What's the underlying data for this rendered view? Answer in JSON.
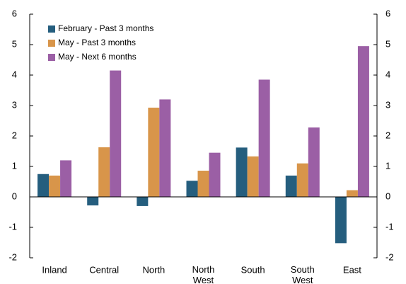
{
  "chart_data": {
    "type": "bar",
    "categories": [
      "Inland",
      "Central",
      "North",
      "North West",
      "South",
      "South West",
      "East"
    ],
    "series": [
      {
        "name": "February - Past 3 months",
        "color": "#255e7e",
        "values": [
          0.75,
          -0.28,
          -0.3,
          0.53,
          1.62,
          0.7,
          -1.52
        ]
      },
      {
        "name": "May - Past 3 months",
        "color": "#d8954a",
        "values": [
          0.7,
          1.63,
          2.93,
          0.86,
          1.33,
          1.1,
          0.22
        ]
      },
      {
        "name": "May - Next 6 months",
        "color": "#9b5fa5",
        "values": [
          1.2,
          4.15,
          3.2,
          1.45,
          3.85,
          2.28,
          4.95
        ]
      }
    ],
    "ylim": [
      -2,
      6
    ],
    "yticks": [
      -2,
      -1,
      0,
      1,
      2,
      3,
      4,
      5,
      6
    ],
    "y2lim": [
      -2,
      6
    ],
    "y2ticks": [
      -2,
      -1,
      0,
      1,
      2,
      3,
      4,
      5,
      6
    ],
    "legend": "top-left"
  }
}
